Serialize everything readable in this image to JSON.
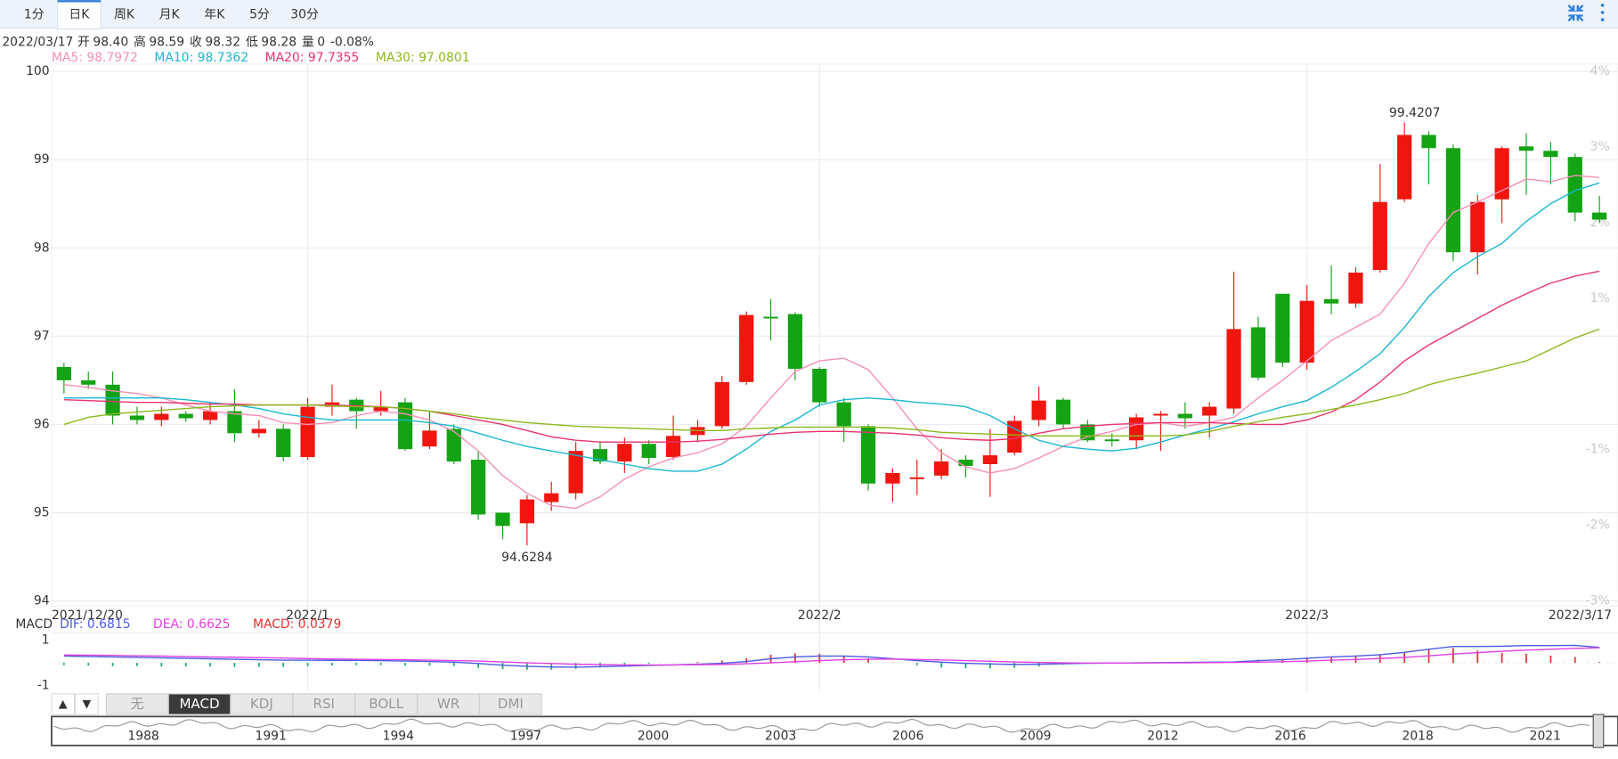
{
  "toolbar": {
    "tabs": [
      "1分",
      "日K",
      "周K",
      "月K",
      "年K",
      "5分",
      "30分"
    ],
    "active": "日K"
  },
  "quote": {
    "date": "2022/03/17",
    "items": [
      {
        "label": "开",
        "value": "98.40",
        "color": "#333333"
      },
      {
        "label": "高",
        "value": "98.59",
        "color": "#e8130f"
      },
      {
        "label": "收",
        "value": "98.32",
        "color": "#1a9a1a"
      },
      {
        "label": "低",
        "value": "98.28",
        "color": "#1a9a1a"
      },
      {
        "label": "量",
        "value": "0",
        "color": "#333333"
      }
    ],
    "change": "-0.08%",
    "change_color": "#1a9a1a"
  },
  "chart_data": [
    {
      "type": "candlestick",
      "categories": [
        "2021/12/20",
        null,
        null,
        null,
        null,
        null,
        null,
        null,
        null,
        null,
        "2022/1",
        null,
        null,
        null,
        null,
        null,
        null,
        null,
        null,
        null,
        null,
        null,
        null,
        null,
        null,
        null,
        null,
        null,
        null,
        null,
        null,
        "2022/2",
        null,
        null,
        null,
        null,
        null,
        null,
        null,
        null,
        null,
        null,
        null,
        null,
        null,
        null,
        null,
        null,
        null,
        null,
        null,
        "2022/3",
        null,
        null,
        null,
        null,
        null,
        null,
        null,
        null,
        null,
        null,
        null,
        "2022/3/17"
      ],
      "open": [
        96.65,
        96.5,
        96.45,
        96.1,
        96.05,
        96.12,
        96.05,
        96.15,
        95.9,
        95.95,
        95.63,
        96.2,
        96.28,
        96.15,
        96.25,
        95.75,
        95.95,
        95.6,
        95.0,
        94.88,
        95.12,
        95.22,
        95.72,
        95.58,
        95.78,
        95.63,
        95.88,
        95.98,
        96.48,
        97.22,
        97.25,
        96.63,
        96.25,
        95.98,
        95.33,
        95.38,
        95.42,
        95.6,
        95.55,
        95.68,
        96.05,
        96.28,
        96.0,
        95.83,
        95.82,
        96.1,
        96.12,
        96.1,
        96.18,
        97.1,
        97.48,
        96.7,
        97.42,
        97.37,
        97.75,
        98.55,
        99.28,
        99.13,
        97.95,
        98.55,
        99.15,
        99.1,
        99.03,
        98.4
      ],
      "high": [
        96.7,
        96.6,
        96.6,
        96.2,
        96.2,
        96.15,
        96.25,
        96.4,
        96.05,
        96.0,
        96.3,
        96.45,
        96.3,
        96.38,
        96.3,
        96.15,
        96.0,
        95.7,
        95.0,
        95.2,
        95.35,
        95.8,
        95.8,
        95.85,
        95.82,
        96.1,
        96.05,
        96.55,
        97.28,
        97.42,
        97.27,
        96.65,
        96.3,
        96.0,
        95.5,
        95.6,
        95.72,
        95.65,
        95.95,
        96.1,
        96.43,
        96.3,
        96.05,
        95.9,
        96.12,
        96.15,
        96.25,
        96.25,
        97.73,
        97.22,
        97.48,
        97.58,
        97.8,
        97.78,
        98.95,
        99.4207,
        99.32,
        99.17,
        98.6,
        99.15,
        99.3,
        99.2,
        99.07,
        98.59
      ],
      "low": [
        96.35,
        96.4,
        96.0,
        96.0,
        95.98,
        96.03,
        96.0,
        95.8,
        95.85,
        95.58,
        95.6,
        96.1,
        95.95,
        96.1,
        95.7,
        95.72,
        95.55,
        94.92,
        94.7,
        94.6284,
        95.02,
        95.15,
        95.55,
        95.45,
        95.55,
        95.6,
        95.8,
        95.95,
        96.45,
        96.95,
        96.5,
        96.2,
        95.8,
        95.25,
        95.12,
        95.2,
        95.38,
        95.4,
        95.18,
        95.65,
        95.98,
        95.95,
        95.8,
        95.75,
        95.72,
        95.7,
        95.95,
        95.85,
        96.12,
        96.5,
        96.65,
        96.62,
        97.25,
        97.32,
        97.72,
        98.52,
        98.72,
        97.85,
        97.7,
        98.28,
        98.6,
        98.72,
        98.3,
        98.28
      ],
      "close": [
        96.5,
        96.45,
        96.1,
        96.05,
        96.12,
        96.07,
        96.15,
        95.9,
        95.95,
        95.63,
        96.2,
        96.25,
        96.15,
        96.2,
        95.72,
        95.93,
        95.58,
        94.98,
        94.85,
        95.15,
        95.22,
        95.7,
        95.58,
        95.78,
        95.62,
        95.87,
        95.97,
        96.48,
        97.24,
        97.2,
        96.63,
        96.25,
        95.98,
        95.33,
        95.45,
        95.4,
        95.58,
        95.53,
        95.65,
        96.04,
        96.27,
        96.0,
        95.82,
        95.81,
        96.08,
        96.12,
        96.07,
        96.2,
        97.08,
        96.53,
        96.7,
        97.4,
        97.37,
        97.72,
        98.52,
        99.28,
        99.13,
        97.95,
        98.52,
        99.13,
        99.1,
        99.03,
        98.4,
        98.32
      ],
      "up_color": "#f0160f",
      "down_color": "#14a314",
      "extreme_labels": true,
      "series": [
        {
          "name": "MA5: 98.7972",
          "color": "#f590b5",
          "values": [
            96.45,
            96.42,
            96.38,
            96.35,
            96.3,
            96.22,
            96.15,
            96.12,
            96.1,
            96.02,
            96.0,
            96.02,
            96.1,
            96.15,
            96.12,
            96.05,
            95.92,
            95.7,
            95.42,
            95.22,
            95.08,
            95.05,
            95.18,
            95.38,
            95.52,
            95.62,
            95.68,
            95.78,
            95.98,
            96.3,
            96.6,
            96.72,
            96.75,
            96.62,
            96.3,
            95.95,
            95.68,
            95.52,
            95.45,
            95.5,
            95.62,
            95.75,
            95.86,
            95.92,
            96.0,
            96.02,
            95.98,
            96.02,
            96.08,
            96.3,
            96.5,
            96.72,
            96.95,
            97.1,
            97.25,
            97.6,
            98.05,
            98.4,
            98.52,
            98.65,
            98.78,
            98.75,
            98.82,
            98.7972
          ]
        },
        {
          "name": "MA10: 98.7362",
          "color": "#18b6d2",
          "values": [
            96.3,
            96.3,
            96.3,
            96.3,
            96.3,
            96.28,
            96.25,
            96.22,
            96.18,
            96.12,
            96.08,
            96.05,
            96.05,
            96.05,
            96.05,
            96.02,
            95.98,
            95.9,
            95.82,
            95.75,
            95.7,
            95.65,
            95.6,
            95.55,
            95.5,
            95.47,
            95.47,
            95.55,
            95.72,
            95.92,
            96.05,
            96.22,
            96.28,
            96.3,
            96.28,
            96.25,
            96.23,
            96.2,
            96.1,
            95.95,
            95.82,
            95.75,
            95.72,
            95.7,
            95.73,
            95.8,
            95.88,
            95.95,
            96.03,
            96.12,
            96.2,
            96.27,
            96.42,
            96.6,
            96.8,
            97.1,
            97.45,
            97.72,
            97.9,
            98.05,
            98.3,
            98.5,
            98.65,
            98.7362
          ]
        },
        {
          "name": "MA20: 97.7355",
          "color": "#e8336e",
          "values": [
            96.28,
            96.27,
            96.26,
            96.25,
            96.25,
            96.24,
            96.23,
            96.23,
            96.22,
            96.22,
            96.22,
            96.22,
            96.21,
            96.2,
            96.18,
            96.15,
            96.1,
            96.05,
            96.0,
            95.93,
            95.86,
            95.82,
            95.8,
            95.8,
            95.8,
            95.8,
            95.81,
            95.83,
            95.86,
            95.89,
            95.91,
            95.92,
            95.92,
            95.91,
            95.9,
            95.88,
            95.85,
            95.83,
            95.82,
            95.84,
            95.9,
            95.95,
            95.98,
            96.0,
            96.01,
            96.02,
            96.02,
            96.02,
            96.01,
            96.0,
            96.0,
            96.05,
            96.14,
            96.28,
            96.48,
            96.72,
            96.9,
            97.05,
            97.2,
            97.35,
            97.48,
            97.6,
            97.68,
            97.7355
          ]
        },
        {
          "name": "MA30: 97.0801",
          "color": "#8cb81c",
          "values": [
            96.0,
            96.08,
            96.12,
            96.14,
            96.16,
            96.18,
            96.2,
            96.21,
            96.22,
            96.22,
            96.22,
            96.21,
            96.2,
            96.2,
            96.18,
            96.15,
            96.12,
            96.08,
            96.05,
            96.02,
            96.0,
            95.98,
            95.97,
            95.96,
            95.95,
            95.94,
            95.93,
            95.93,
            95.95,
            95.96,
            95.97,
            95.97,
            95.97,
            95.97,
            95.96,
            95.94,
            95.91,
            95.9,
            95.89,
            95.88,
            95.87,
            95.87,
            95.87,
            95.87,
            95.87,
            95.87,
            95.88,
            95.92,
            95.98,
            96.03,
            96.08,
            96.12,
            96.17,
            96.22,
            96.28,
            96.35,
            96.45,
            96.52,
            96.58,
            96.65,
            96.72,
            96.85,
            96.98,
            97.0801
          ]
        }
      ],
      "ylim": [
        94,
        100
      ],
      "yticks": [
        94,
        95,
        96,
        97,
        98,
        99,
        100
      ],
      "y2lim": [
        -3,
        4
      ],
      "y2ticks": [
        {
          "value": 4,
          "label": "4%"
        },
        {
          "value": 3,
          "label": "3%"
        },
        {
          "value": 2,
          "label": "2%"
        },
        {
          "value": 1,
          "label": "1%"
        },
        {
          "value": -1,
          "label": "-1%"
        },
        {
          "value": -2,
          "label": "-2%"
        },
        {
          "value": -3,
          "label": "-3%"
        }
      ],
      "grid": true
    },
    {
      "type": "macd",
      "title": "MACD",
      "series": [
        {
          "name": "DIF: 0.6815",
          "color": "#4a5ce0",
          "style": "line",
          "values": [
            0.3,
            0.28,
            0.26,
            0.24,
            0.22,
            0.2,
            0.18,
            0.16,
            0.14,
            0.12,
            0.12,
            0.11,
            0.11,
            0.1,
            0.08,
            0.06,
            0.03,
            -0.03,
            -0.1,
            -0.15,
            -0.18,
            -0.19,
            -0.17,
            -0.14,
            -0.11,
            -0.09,
            -0.06,
            -0.02,
            0.06,
            0.18,
            0.26,
            0.3,
            0.3,
            0.26,
            0.18,
            0.1,
            0.03,
            -0.02,
            -0.05,
            -0.07,
            -0.06,
            -0.04,
            -0.02,
            -0.01,
            0.0,
            0.01,
            0.02,
            0.03,
            0.04,
            0.1,
            0.14,
            0.2,
            0.26,
            0.3,
            0.36,
            0.46,
            0.6,
            0.72,
            0.72,
            0.73,
            0.76,
            0.76,
            0.77,
            0.6815
          ]
        },
        {
          "name": "DEA: 0.6625",
          "color": "#e040e0",
          "style": "line",
          "values": [
            0.35,
            0.34,
            0.33,
            0.31,
            0.3,
            0.28,
            0.26,
            0.25,
            0.23,
            0.21,
            0.19,
            0.17,
            0.16,
            0.15,
            0.14,
            0.12,
            0.1,
            0.08,
            0.04,
            0.0,
            -0.03,
            -0.06,
            -0.08,
            -0.09,
            -0.09,
            -0.09,
            -0.08,
            -0.07,
            -0.04,
            0.0,
            0.05,
            0.1,
            0.14,
            0.16,
            0.17,
            0.15,
            0.13,
            0.1,
            0.07,
            0.04,
            0.02,
            0.0,
            -0.01,
            -0.01,
            -0.01,
            0.0,
            0.0,
            0.01,
            0.02,
            0.03,
            0.05,
            0.08,
            0.12,
            0.15,
            0.19,
            0.24,
            0.31,
            0.39,
            0.45,
            0.51,
            0.56,
            0.6,
            0.64,
            0.6625
          ]
        },
        {
          "name": "MACD: 0.0379",
          "color": "#e03030",
          "down_color": "#18a868",
          "style": "bar",
          "values": [
            -0.1,
            -0.12,
            -0.14,
            -0.14,
            -0.16,
            -0.16,
            -0.16,
            -0.18,
            -0.18,
            -0.18,
            -0.14,
            -0.12,
            -0.1,
            -0.1,
            -0.12,
            -0.12,
            -0.14,
            -0.22,
            -0.28,
            -0.3,
            -0.3,
            -0.26,
            -0.18,
            -0.1,
            -0.04,
            0.0,
            0.04,
            0.1,
            0.2,
            0.36,
            0.42,
            0.4,
            0.32,
            0.2,
            0.02,
            -0.1,
            -0.2,
            -0.24,
            -0.24,
            -0.22,
            -0.16,
            -0.08,
            -0.02,
            0.0,
            0.02,
            0.02,
            0.04,
            0.04,
            0.04,
            0.14,
            0.18,
            0.24,
            0.28,
            0.3,
            0.34,
            0.44,
            0.58,
            0.66,
            0.54,
            0.44,
            0.4,
            0.32,
            0.26,
            0.0379
          ]
        }
      ],
      "ylim": [
        -1,
        1
      ],
      "yticks": [
        -1,
        1
      ]
    }
  ],
  "indicator_tabs": {
    "arrows": [
      "▲",
      "▼"
    ],
    "tabs": [
      "无",
      "MACD",
      "KDJ",
      "RSI",
      "BOLL",
      "WR",
      "DMI"
    ],
    "active": "MACD"
  },
  "navigator": {
    "years": [
      "1988",
      "1991",
      "1994",
      "1997",
      "2000",
      "2003",
      "2006",
      "2009",
      "2012",
      "2016",
      "2018",
      "2021"
    ]
  }
}
